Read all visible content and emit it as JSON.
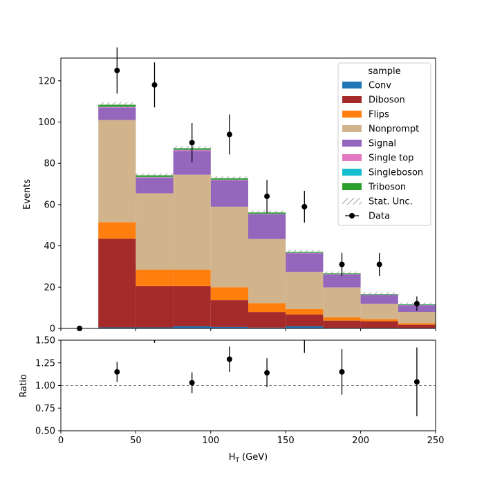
{
  "chart_data": {
    "type": "bar",
    "stacked": true,
    "x_edges": [
      0,
      25,
      50,
      75,
      100,
      125,
      150,
      175,
      200,
      225,
      250
    ],
    "xlabel": "H",
    "xlabel_sub": "T",
    "xlabel_unit": " (GeV)",
    "xlim": [
      0,
      250
    ],
    "x_ticks": [
      0,
      50,
      100,
      150,
      200,
      250
    ],
    "main": {
      "ylabel": "Events",
      "ylim": [
        0,
        131
      ],
      "y_ticks": [
        0,
        20,
        40,
        60,
        80,
        100,
        120
      ]
    },
    "series": [
      {
        "name": "Conv",
        "color": "#1f77b4",
        "values": [
          0,
          0.5,
          0.5,
          1.0,
          0.7,
          0.4,
          1.0,
          0.3,
          0.3,
          0.2
        ]
      },
      {
        "name": "Diboson",
        "color": "#a52a2a",
        "values": [
          0,
          43,
          20,
          19.5,
          13,
          7.6,
          5.8,
          3.5,
          3.2,
          1.6
        ]
      },
      {
        "name": "Flips",
        "color": "#ff7f0e",
        "values": [
          0,
          8,
          8,
          8,
          6.3,
          4.3,
          2.6,
          1.6,
          1.0,
          0.7
        ]
      },
      {
        "name": "Nonprompt",
        "color": "#d2b48c",
        "values": [
          0,
          49.5,
          37,
          46,
          39,
          31,
          18,
          14.5,
          7.4,
          5.5
        ]
      },
      {
        "name": "Signal",
        "color": "#9467bd",
        "values": [
          0,
          6,
          7.5,
          11.5,
          12.7,
          12,
          9,
          6.3,
          4.3,
          3.3
        ]
      },
      {
        "name": "Single top",
        "color": "#e377c2",
        "values": [
          0,
          0.3,
          0.3,
          0.5,
          0.3,
          0.2,
          0.2,
          0.1,
          0.1,
          0.1
        ]
      },
      {
        "name": "Singleboson",
        "color": "#17becf",
        "values": [
          0,
          0.1,
          0.1,
          0.1,
          0.1,
          0.1,
          0.1,
          0.1,
          0.1,
          0.1
        ]
      },
      {
        "name": "Triboson",
        "color": "#2ca02c",
        "values": [
          0,
          1.0,
          0.8,
          0.7,
          0.7,
          0.6,
          0.4,
          0.3,
          0.3,
          0.2
        ]
      }
    ],
    "stat_unc": {
      "name": "Stat. Unc.",
      "color": "#808080",
      "rel": 0.012
    },
    "data": {
      "name": "Data",
      "x": [
        12.5,
        37.5,
        62.5,
        87.5,
        112.5,
        137.5,
        162.5,
        187.5,
        212.5,
        237.5
      ],
      "y": [
        0,
        125,
        118,
        90,
        94,
        64,
        59,
        31,
        31,
        12
      ],
      "yerr": [
        0,
        11.2,
        10.9,
        9.5,
        9.7,
        8.0,
        7.7,
        5.6,
        5.6,
        3.5
      ]
    },
    "ratio": {
      "ylabel": "Ratio",
      "ylim": [
        0.5,
        1.5
      ],
      "y_ticks": [
        0.5,
        0.75,
        1.0,
        1.25,
        1.5
      ],
      "y_tick_labels": [
        "0.50",
        "0.75",
        "1.00",
        "1.25",
        "1.50"
      ],
      "reference_line": 1.0,
      "x": [
        37.5,
        87.5,
        112.5,
        137.5,
        187.5,
        237.5
      ],
      "y": [
        1.15,
        1.03,
        1.29,
        1.14,
        1.15,
        1.04
      ],
      "yerr": [
        0.11,
        0.115,
        0.14,
        0.16,
        0.25,
        0.38
      ],
      "offscale_x": [
        62.5,
        162.5
      ],
      "offscale_lower": [
        1.47,
        1.36
      ]
    },
    "legend": {
      "title": "sample",
      "position": "upper-right"
    }
  }
}
